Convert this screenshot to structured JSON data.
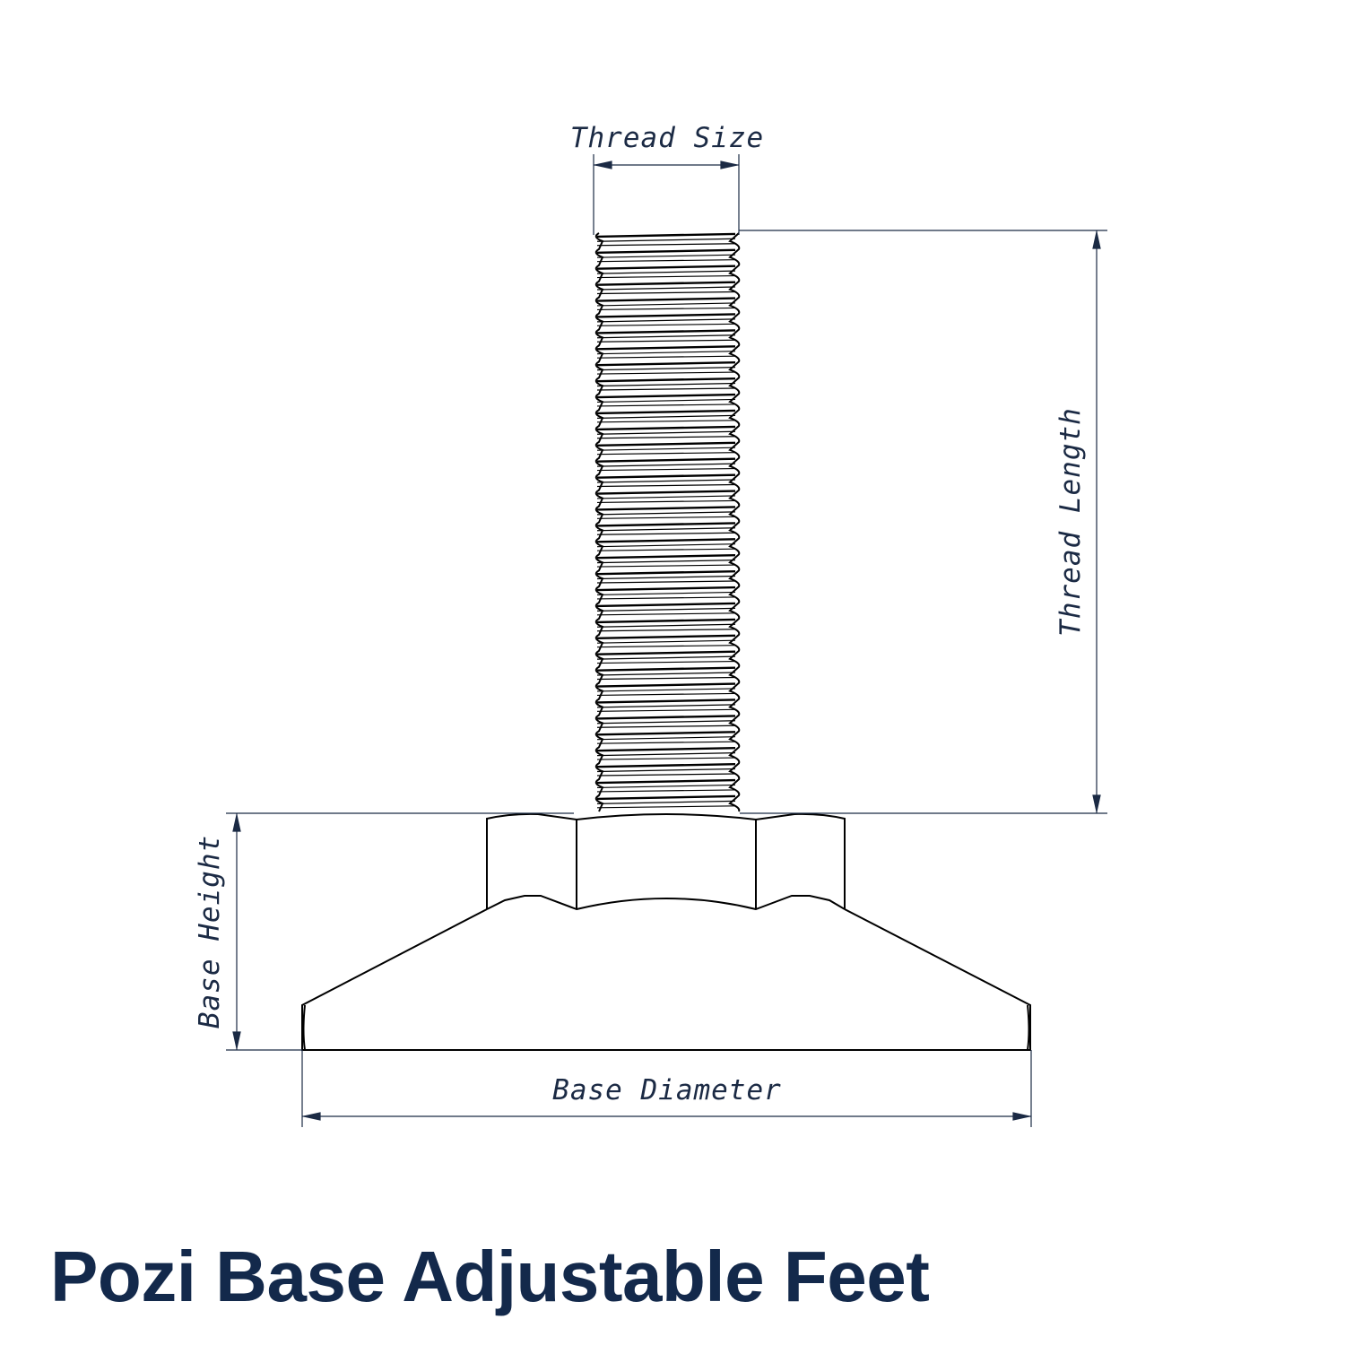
{
  "title": "Pozi Base Adjustable Feet",
  "dimensions": {
    "thread_size": "Thread Size",
    "thread_length": "Thread Length",
    "base_height": "Base Height",
    "base_diameter": "Base Diameter"
  },
  "colors": {
    "dimension": "#1b2a44",
    "outline": "#000000",
    "title": "#13294b"
  }
}
